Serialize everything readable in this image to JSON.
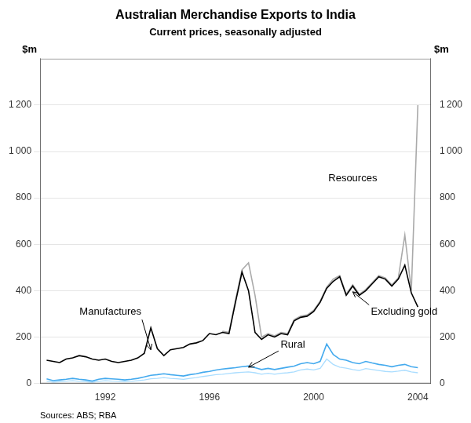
{
  "chart_data": {
    "type": "line",
    "title": "Australian Merchandise Exports to India",
    "subtitle": "Current prices, seasonally adjusted",
    "ylabel": "$m",
    "y2label": "$m",
    "source": "Sources: ABS; RBA",
    "xlim": [
      1989.5,
      2004.5
    ],
    "xticks": [
      1992,
      1996,
      2000,
      2004
    ],
    "ylim": [
      0,
      1400
    ],
    "yticks": [
      0,
      200,
      400,
      600,
      800,
      {
        "value": 1000,
        "label": "1 000"
      },
      {
        "value": 1200,
        "label": "1 200"
      }
    ],
    "y2lim": [
      0,
      1400
    ],
    "y2ticks": [
      0,
      200,
      400,
      600,
      800,
      {
        "value": 1000,
        "label": "1 000"
      },
      {
        "value": 1200,
        "label": "1 200"
      }
    ],
    "grid": "y",
    "series": [
      {
        "color": "#aaddff",
        "x": [
          1989.75,
          1990.0,
          1990.25,
          1990.5,
          1990.75,
          1991.0,
          1991.25,
          1991.5,
          1991.75,
          1992.0,
          1992.25,
          1992.5,
          1992.75,
          1993.0,
          1993.25,
          1993.5,
          1993.75,
          1994.0,
          1994.25,
          1994.5,
          1994.75,
          1995.0,
          1995.25,
          1995.5,
          1995.75,
          1996.0,
          1996.25,
          1996.5,
          1996.75,
          1997.0,
          1997.25,
          1997.5,
          1997.75,
          1998.0,
          1998.25,
          1998.5,
          1998.75,
          1999.0,
          1999.25,
          1999.5,
          1999.75,
          2000.0,
          2000.25,
          2000.5,
          2000.75,
          2001.0,
          2001.25,
          2001.5,
          2001.75,
          2002.0,
          2002.25,
          2002.5,
          2002.75,
          2003.0,
          2003.25,
          2003.5,
          2003.75,
          2004.0
        ],
        "values": [
          10,
          6,
          8,
          10,
          12,
          9,
          8,
          5,
          9,
          12,
          10,
          9,
          8,
          9,
          12,
          15,
          20,
          22,
          25,
          22,
          20,
          18,
          22,
          25,
          30,
          34,
          38,
          40,
          43,
          46,
          48,
          50,
          46,
          40,
          44,
          40,
          44,
          46,
          50,
          58,
          62,
          58,
          65,
          105,
          82,
          70,
          66,
          60,
          56,
          64,
          60,
          56,
          52,
          50,
          53,
          57,
          50,
          46
        ]
      },
      {
        "color": "#44aaee",
        "x": [
          1989.75,
          1990.0,
          1990.25,
          1990.5,
          1990.75,
          1991.0,
          1991.25,
          1991.5,
          1991.75,
          1992.0,
          1992.25,
          1992.5,
          1992.75,
          1993.0,
          1993.25,
          1993.5,
          1993.75,
          1994.0,
          1994.25,
          1994.5,
          1994.75,
          1995.0,
          1995.25,
          1995.5,
          1995.75,
          1996.0,
          1996.25,
          1996.5,
          1996.75,
          1997.0,
          1997.25,
          1997.5,
          1997.75,
          1998.0,
          1998.25,
          1998.5,
          1998.75,
          1999.0,
          1999.25,
          1999.5,
          1999.75,
          2000.0,
          2000.25,
          2000.5,
          2000.75,
          2001.0,
          2001.25,
          2001.5,
          2001.75,
          2002.0,
          2002.25,
          2002.5,
          2002.75,
          2003.0,
          2003.25,
          2003.5,
          2003.75,
          2004.0
        ],
        "values": [
          20,
          12,
          15,
          18,
          22,
          18,
          15,
          10,
          18,
          22,
          20,
          18,
          15,
          18,
          22,
          28,
          35,
          38,
          42,
          38,
          35,
          32,
          38,
          42,
          48,
          52,
          58,
          62,
          65,
          68,
          72,
          75,
          68,
          60,
          65,
          60,
          65,
          70,
          75,
          85,
          90,
          85,
          95,
          170,
          125,
          105,
          100,
          90,
          85,
          95,
          88,
          82,
          78,
          72,
          78,
          82,
          72,
          68
        ]
      },
      {
        "color": "#aaaaaa",
        "x": [
          1996.5,
          1996.75,
          1997.0,
          1997.25,
          1997.5,
          1997.75,
          1998.0,
          1998.25,
          1998.5,
          1998.75,
          1999.0,
          1999.25,
          1999.5,
          1999.75,
          2000.0,
          2000.25,
          2000.5,
          2000.75,
          2001.0,
          2001.25,
          2001.5,
          2001.75,
          2002.0,
          2002.25,
          2002.5,
          2002.75,
          2003.0,
          2003.25,
          2003.5,
          2003.75,
          2004.0
        ],
        "values": [
          225,
          220,
          360,
          490,
          520,
          380,
          200,
          215,
          205,
          220,
          215,
          275,
          290,
          295,
          315,
          355,
          415,
          450,
          465,
          385,
          425,
          385,
          405,
          435,
          465,
          455,
          425,
          455,
          640,
          400,
          1200
        ]
      },
      {
        "color": "#000000",
        "x": [
          1989.75,
          1990.0,
          1990.25,
          1990.5,
          1990.75,
          1991.0,
          1991.25,
          1991.5,
          1991.75,
          1992.0,
          1992.25,
          1992.5,
          1992.75,
          1993.0,
          1993.25,
          1993.5,
          1993.75,
          1994.0,
          1994.25,
          1994.5,
          1994.75,
          1995.0,
          1995.25,
          1995.5,
          1995.75,
          1996.0,
          1996.25,
          1996.5,
          1996.75,
          1997.0,
          1997.25,
          1997.5,
          1997.75,
          1998.0,
          1998.25,
          1998.5,
          1998.75,
          1999.0,
          1999.25,
          1999.5,
          1999.75,
          2000.0,
          2000.25,
          2000.5,
          2000.75,
          2001.0,
          2001.25,
          2001.5,
          2001.75,
          2002.0,
          2002.25,
          2002.5,
          2002.75,
          2003.0,
          2003.25,
          2003.5,
          2003.75,
          2004.0
        ],
        "values": [
          100,
          95,
          90,
          105,
          110,
          120,
          115,
          105,
          100,
          105,
          95,
          90,
          95,
          100,
          110,
          130,
          240,
          150,
          120,
          145,
          150,
          155,
          170,
          175,
          185,
          215,
          210,
          220,
          215,
          350,
          480,
          400,
          220,
          190,
          210,
          200,
          215,
          210,
          270,
          285,
          290,
          310,
          350,
          410,
          440,
          460,
          380,
          420,
          380,
          400,
          430,
          460,
          450,
          420,
          450,
          510,
          390,
          330
        ]
      }
    ],
    "annotations": [
      {
        "text": "Manufactures",
        "x": 1992.2,
        "y": 295,
        "point": [
          1993.75,
          145
        ]
      },
      {
        "text": "Resources",
        "x": 2001.5,
        "y": 870
      },
      {
        "text": "Rural",
        "x": 1999.2,
        "y": 155,
        "point": [
          1997.5,
          70
        ]
      },
      {
        "text": "Excluding gold",
        "x": 2002.2,
        "y": 295,
        "point": [
          2001.5,
          395
        ]
      }
    ]
  }
}
